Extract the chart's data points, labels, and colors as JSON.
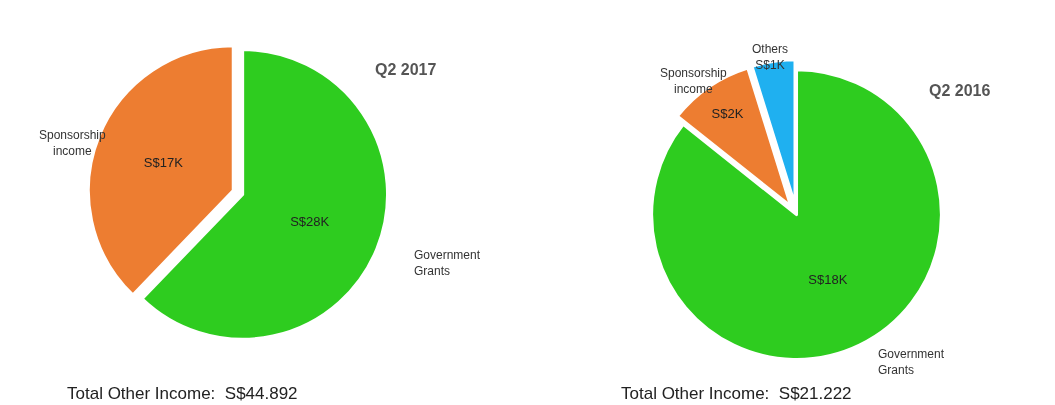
{
  "chart_data": [
    {
      "type": "pie",
      "title": "Q2 2017",
      "categories": [
        "Government Grants",
        "Sponsorship income"
      ],
      "values": [
        62.2,
        37.8
      ],
      "colors": [
        "#2ecc1f",
        "#ed7d31"
      ],
      "value_labels": [
        "S$28K",
        "S$17K"
      ],
      "annotations": [
        "Total Other Income:  S$44.892"
      ]
    },
    {
      "type": "pie",
      "title": "Q2 2016",
      "categories": [
        "Government Grants",
        "Sponsorship income",
        "Others"
      ],
      "values": [
        85.7,
        9.5,
        4.8
      ],
      "colors": [
        "#2ecc1f",
        "#ed7d31",
        "#1fb0f0"
      ],
      "value_labels": [
        "S$18K",
        "S$2K",
        "S$1K"
      ],
      "annotations": [
        "Total Other Income:  S$21.222"
      ]
    }
  ]
}
